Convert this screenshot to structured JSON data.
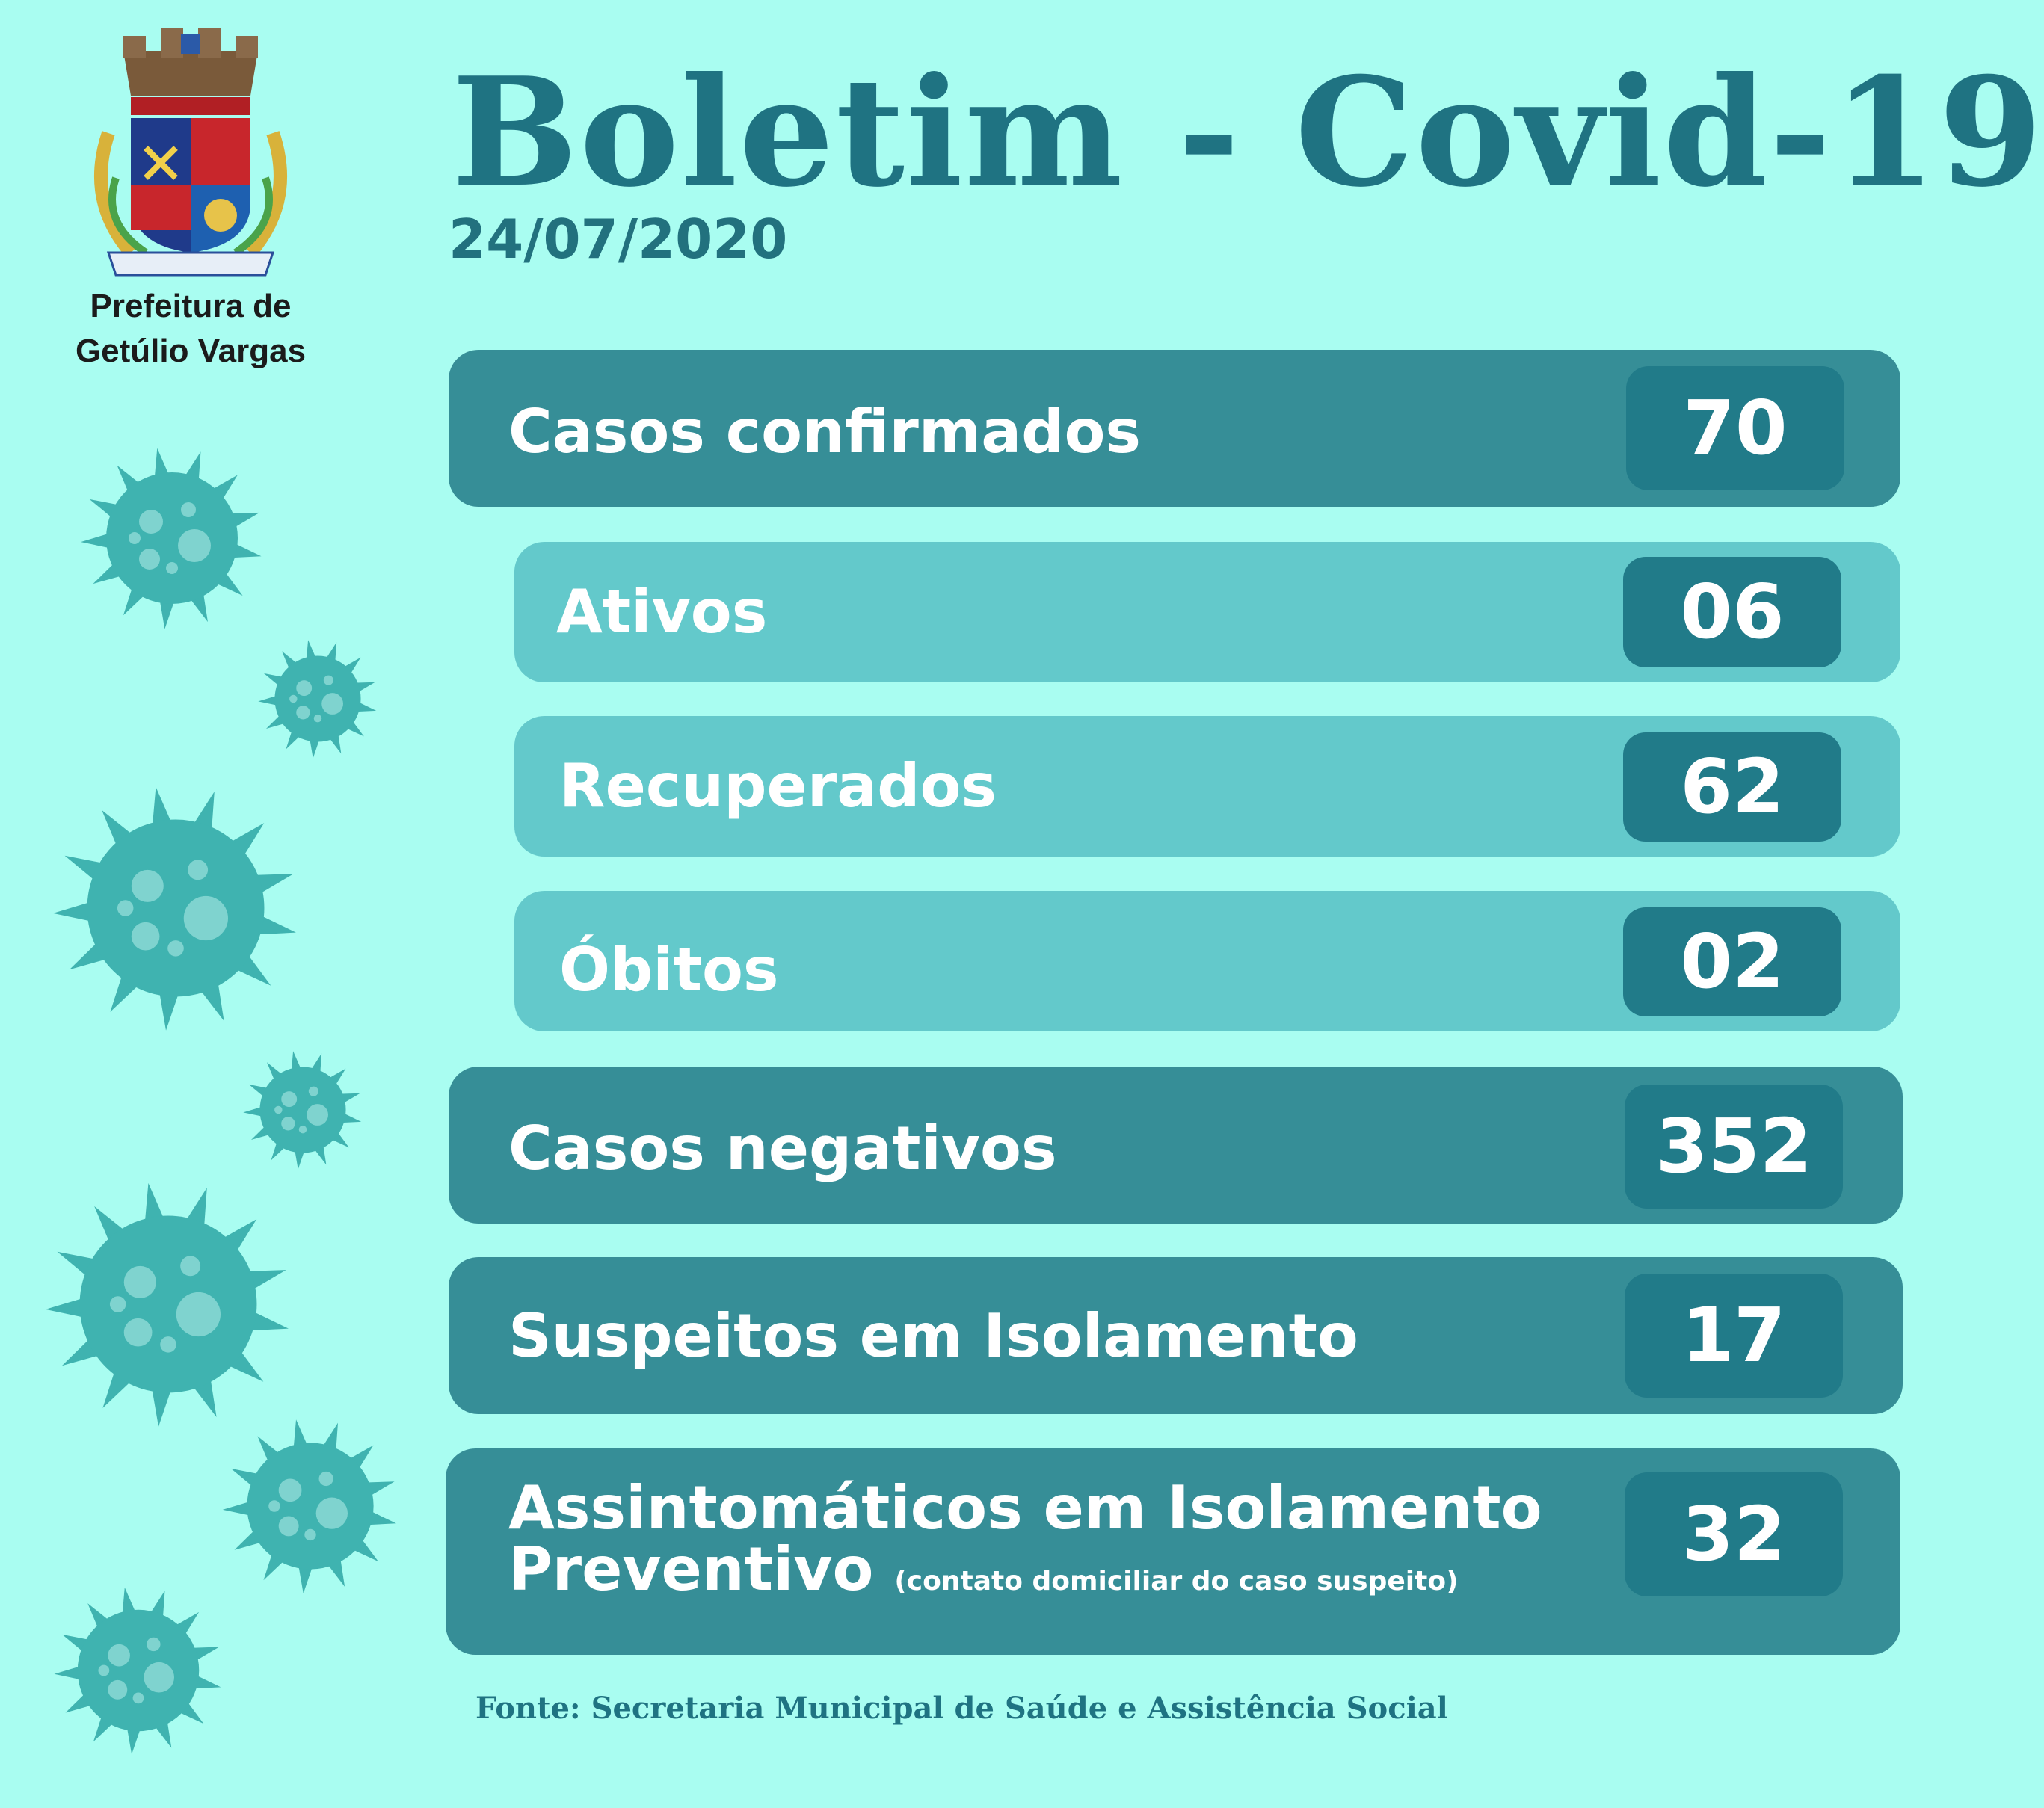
{
  "header": {
    "title": "Boletim - Covid-19",
    "date": "24/07/2020",
    "org_line1": "Prefeitura de",
    "org_line2": "Getúlio Vargas",
    "crest_icon": "municipal-coat-of-arms-icon"
  },
  "stats": {
    "casos_confirmados": {
      "label": "Casos confirmados",
      "value": "70"
    },
    "ativos": {
      "label": "Ativos",
      "value": "06"
    },
    "recuperados": {
      "label": "Recuperados",
      "value": "62"
    },
    "obitos": {
      "label": "Óbitos",
      "value": "02"
    },
    "casos_negativos": {
      "label": "Casos negativos",
      "value": "352"
    },
    "suspeitos": {
      "label": "Suspeitos em Isolamento",
      "value": "17"
    },
    "assintomaticos": {
      "label_line1": "Assintomáticos em Isolamento",
      "label_line2": "Preventivo",
      "note": "(contato domiciliar do caso suspeito)",
      "value": "32"
    }
  },
  "footer": {
    "source": "Fonte: Secretaria Municipal de Saúde e Assistência Social"
  },
  "colors": {
    "background": "#a9fdf1",
    "dark_row": "#368e97",
    "light_row": "#63c9cb",
    "value_box": "#217b89",
    "title": "#1f7382",
    "virus": "#3fb3b0"
  },
  "decorations": {
    "virus_icon": "coronavirus-icon"
  }
}
